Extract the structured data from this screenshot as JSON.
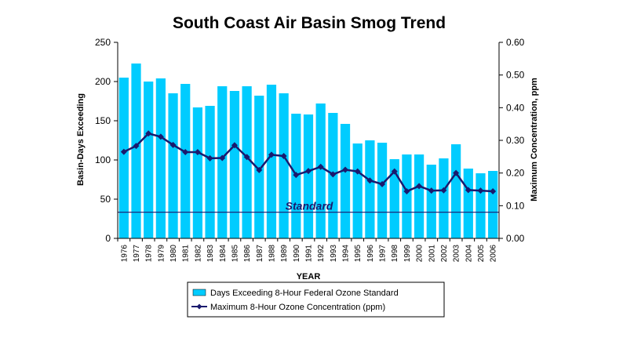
{
  "chart_data": {
    "type": "bar+line",
    "title": "South Coast Air Basin Smog Trend",
    "xlabel": "YEAR",
    "ylabel_left": "Basin-Days Exceeding",
    "ylabel_right": "Maximum Concentration, ppm",
    "ylim_left": [
      0,
      250
    ],
    "yticks_left": [
      "0",
      "50",
      "100",
      "150",
      "200",
      "250"
    ],
    "ylim_right": [
      0,
      0.6
    ],
    "yticks_right": [
      "0.00",
      "0.10",
      "0.20",
      "0.30",
      "0.40",
      "0.50",
      "0.60"
    ],
    "categories": [
      "1976",
      "1977",
      "1978",
      "1979",
      "1980",
      "1981",
      "1982",
      "1983",
      "1984",
      "1985",
      "1986",
      "1987",
      "1988",
      "1989",
      "1990",
      "1991",
      "1992",
      "1993",
      "1994",
      "1995",
      "1996",
      "1997",
      "1998",
      "1999",
      "2000",
      "2001",
      "2002",
      "2003",
      "2004",
      "2005",
      "2006"
    ],
    "series": [
      {
        "name": "Days Exceeding 8-Hour Federal Ozone Standard",
        "type": "bar",
        "axis": "left",
        "color": "#00ccff",
        "values": [
          205,
          223,
          200,
          204,
          185,
          197,
          167,
          169,
          194,
          188,
          194,
          182,
          196,
          185,
          159,
          158,
          172,
          160,
          146,
          121,
          125,
          122,
          101,
          107,
          107,
          94,
          102,
          120,
          89,
          83,
          86
        ]
      },
      {
        "name": "Maximum 8-Hour Ozone Concentration (ppm)",
        "type": "line",
        "axis": "right",
        "color": "#1a1a6e",
        "values": [
          0.265,
          0.283,
          0.321,
          0.311,
          0.286,
          0.264,
          0.264,
          0.245,
          0.246,
          0.285,
          0.249,
          0.209,
          0.256,
          0.252,
          0.194,
          0.206,
          0.219,
          0.196,
          0.21,
          0.205,
          0.177,
          0.166,
          0.205,
          0.144,
          0.16,
          0.146,
          0.147,
          0.2,
          0.148,
          0.146,
          0.144
        ]
      }
    ],
    "reference_line": {
      "label": "Standard",
      "value": 0.08,
      "axis": "right",
      "color": "#1a1a6e"
    },
    "grid": false,
    "legend_position": "bottom",
    "plot_background": "#ffffff"
  }
}
